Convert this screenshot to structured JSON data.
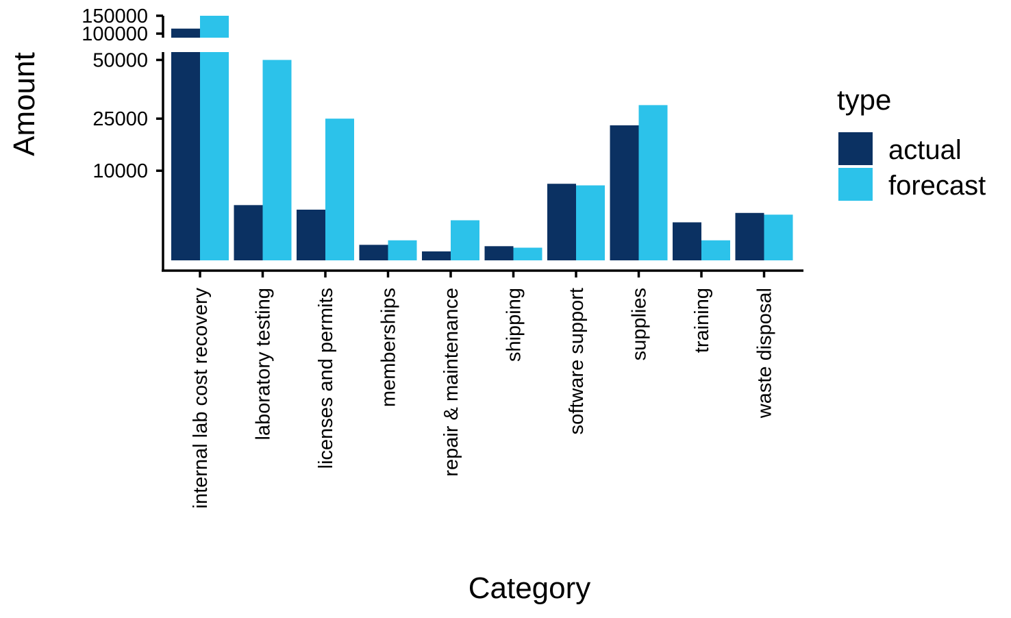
{
  "chart_data": {
    "type": "bar",
    "xlabel": "Category",
    "ylabel": "Amount",
    "categories": [
      "internal lab cost recovery",
      "laboratory testing",
      "licenses and permits",
      "memberships",
      "repair & maintenance",
      "shipping",
      "software support",
      "supplies",
      "training",
      "waste disposal"
    ],
    "series": [
      {
        "name": "actual",
        "color": "#0b3162",
        "values": [
          113000,
          3800,
          3200,
          300,
          100,
          250,
          7300,
          22700,
          1800,
          2800
        ]
      },
      {
        "name": "forecast",
        "color": "#2cc2ea",
        "values": [
          150000,
          50000,
          25000,
          500,
          2000,
          200,
          7000,
          30000,
          500,
          2600
        ]
      }
    ],
    "y_scale": "broken-sqrt",
    "y_axis_break": {
      "lower_range": [
        0,
        54000
      ],
      "upper_range": [
        90000,
        150000
      ]
    },
    "y_ticks_lower": [
      10000,
      25000,
      50000
    ],
    "y_ticks_upper": [
      100000,
      150000
    ],
    "y_tick_labels_lower": [
      "10000",
      "25000",
      "50000"
    ],
    "y_tick_labels_upper": [
      "100000",
      "150000"
    ],
    "grid": false,
    "legend": {
      "title": "type",
      "placement": "right"
    }
  }
}
